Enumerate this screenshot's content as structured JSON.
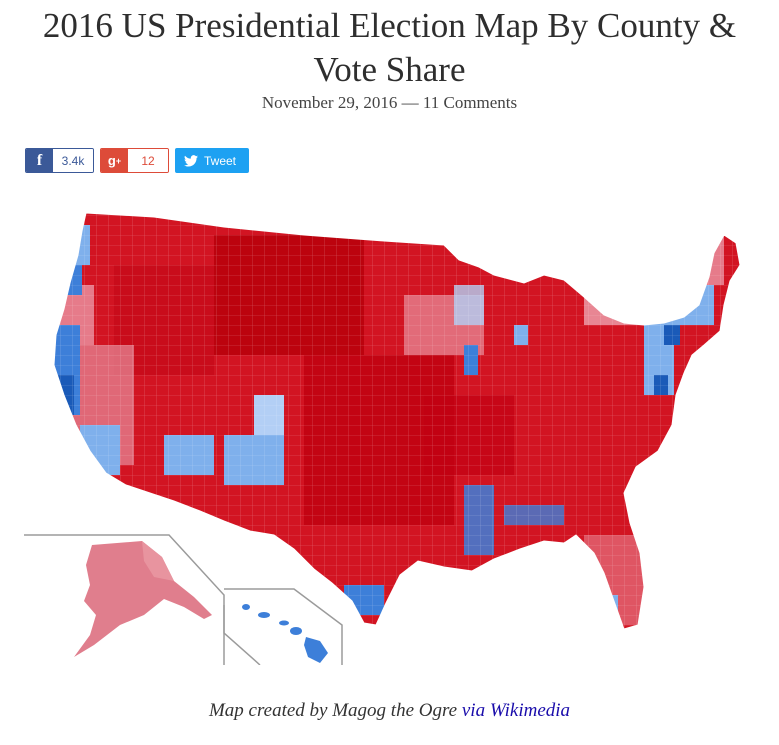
{
  "article": {
    "title": "2016 US Presidential Election Map By County & Vote Share",
    "date": "November 29, 2016",
    "separator": "—",
    "comments": "11 Comments"
  },
  "share": {
    "facebook": {
      "icon": "facebook-icon",
      "count": "3.4k",
      "color": "#3b5998"
    },
    "googleplus": {
      "icon": "google-plus-icon",
      "count": "12",
      "color": "#dd4b39"
    },
    "twitter": {
      "icon": "twitter-bird-icon",
      "label": "Tweet",
      "color": "#1da1f2"
    }
  },
  "map": {
    "colors": {
      "strong_red": "#c0000b",
      "red": "#d8202e",
      "light_red": "#e67b8a",
      "pale_red": "#f3b3bf",
      "pale_blue": "#b3cff5",
      "light_blue": "#7fb0ec",
      "blue": "#3d7fd9",
      "dark_blue": "#1a5ab8"
    }
  },
  "caption": {
    "text": "Map created by Magog the Ogre",
    "link": "via Wikimedia"
  }
}
